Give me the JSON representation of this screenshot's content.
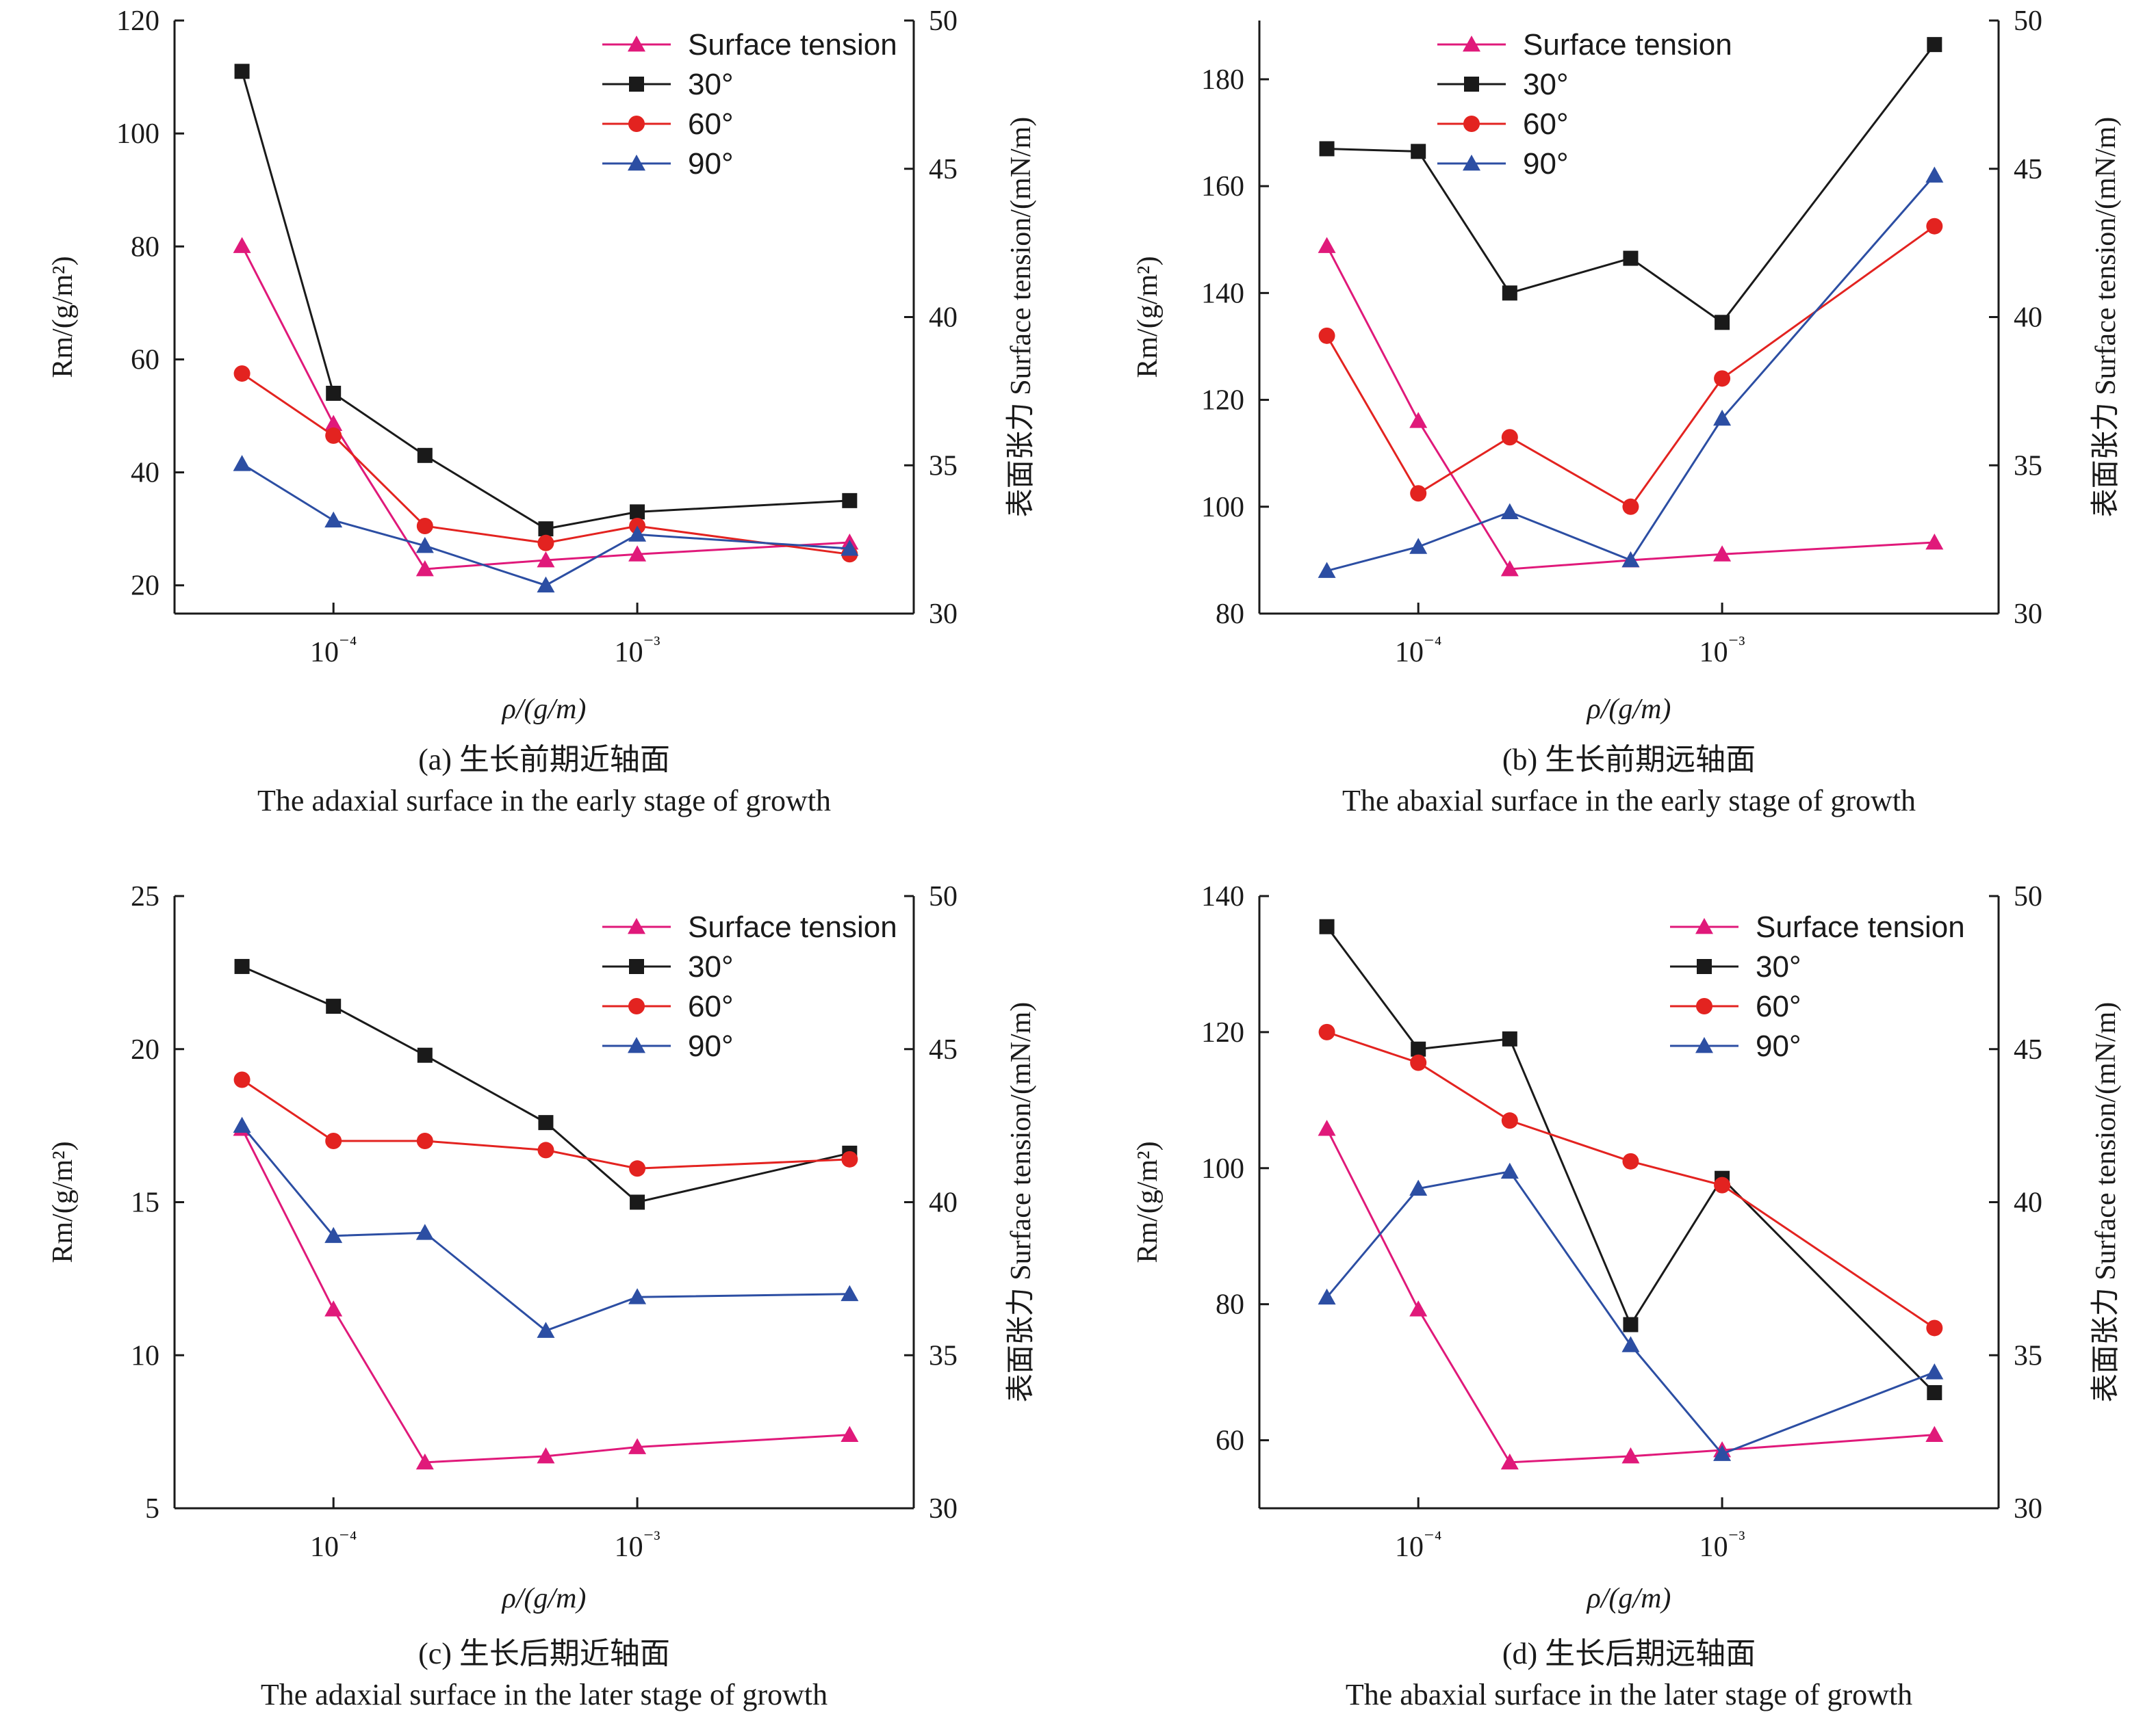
{
  "colors": {
    "surface_tension": "#e0197a",
    "deg30": "#1a1a1a",
    "deg60": "#e32320",
    "deg90": "#2c4ea3"
  },
  "chart_data": [
    {
      "panel": "a",
      "type": "line",
      "caption_zh": "(a) 生长前期近轴面",
      "caption_en": "The adaxial surface in the early stage of growth",
      "xlabel": "ρ/(g/m)",
      "ylabel_left": "Rm/(g/m²)",
      "ylabel_right": "表面张力 Surface tension/(mN/m)",
      "x_scale": "log",
      "x_ticks": [
        "10⁻⁴",
        "10⁻³"
      ],
      "x": [
        5e-05,
        0.0001,
        0.0002,
        0.0005,
        0.001,
        0.005
      ],
      "ylim_left": [
        15,
        120
      ],
      "yticks_left": [
        20,
        40,
        60,
        80,
        100,
        120
      ],
      "ylim_right": [
        30,
        50
      ],
      "yticks_right": [
        30,
        35,
        40,
        45,
        50
      ],
      "legend": "top-right",
      "series": [
        {
          "name": "Surface tension",
          "axis": "right",
          "marker": "triangle",
          "color": "#e0197a",
          "values": [
            42.4,
            36.4,
            31.5,
            31.8,
            32.0,
            32.4
          ]
        },
        {
          "name": "30°",
          "axis": "left",
          "marker": "square",
          "color": "#1a1a1a",
          "values": [
            111,
            54,
            43,
            30,
            33,
            35
          ]
        },
        {
          "name": "60°",
          "axis": "left",
          "marker": "circle",
          "color": "#e32320",
          "values": [
            57.5,
            46.5,
            30.5,
            27.5,
            30.5,
            25.5
          ]
        },
        {
          "name": "90°",
          "axis": "left",
          "marker": "triangle",
          "color": "#2c4ea3",
          "values": [
            41.5,
            31.5,
            27,
            20,
            29,
            26.5
          ]
        }
      ]
    },
    {
      "panel": "b",
      "type": "line",
      "caption_zh": "(b) 生长前期远轴面",
      "caption_en": "The abaxial surface in the early stage of growth",
      "xlabel": "ρ/(g/m)",
      "ylabel_left": "Rm/(g/m²)",
      "ylabel_right": "表面张力 Surface tension/(mN/m)",
      "x_scale": "log",
      "x_ticks": [
        "10⁻⁴",
        "10⁻³"
      ],
      "x": [
        5e-05,
        0.0001,
        0.0002,
        0.0005,
        0.001,
        0.005
      ],
      "ylim_left": [
        80,
        191
      ],
      "yticks_left": [
        80,
        100,
        120,
        140,
        160,
        180
      ],
      "ylim_right": [
        30,
        50
      ],
      "yticks_right": [
        30,
        35,
        40,
        45,
        50
      ],
      "legend": "top-left",
      "series": [
        {
          "name": "Surface tension",
          "axis": "right",
          "marker": "triangle",
          "color": "#e0197a",
          "values": [
            42.4,
            36.5,
            31.5,
            31.8,
            32.0,
            32.4
          ]
        },
        {
          "name": "30°",
          "axis": "left",
          "marker": "square",
          "color": "#1a1a1a",
          "values": [
            167,
            166.5,
            140,
            146.5,
            134.5,
            186.5
          ]
        },
        {
          "name": "60°",
          "axis": "left",
          "marker": "circle",
          "color": "#e32320",
          "values": [
            132,
            102.5,
            113,
            100,
            124,
            152.5
          ]
        },
        {
          "name": "90°",
          "axis": "left",
          "marker": "triangle",
          "color": "#2c4ea3",
          "values": [
            88,
            92.5,
            99,
            90,
            116.5,
            162
          ]
        }
      ]
    },
    {
      "panel": "c",
      "type": "line",
      "caption_zh": "(c) 生长后期近轴面",
      "caption_en": "The adaxial surface in the later stage of growth",
      "xlabel": "ρ/(g/m)",
      "ylabel_left": "Rm/(g/m²)",
      "ylabel_right": "表面张力 Surface tension/(mN/m)",
      "x_scale": "log",
      "x_ticks": [
        "10⁻⁴",
        "10⁻³"
      ],
      "x": [
        5e-05,
        0.0001,
        0.0002,
        0.0005,
        0.001,
        0.005
      ],
      "ylim_left": [
        5,
        25
      ],
      "yticks_left": [
        5,
        10,
        15,
        20,
        25
      ],
      "ylim_right": [
        30,
        50
      ],
      "yticks_right": [
        30,
        35,
        40,
        45,
        50
      ],
      "legend": "top-right",
      "series": [
        {
          "name": "Surface tension",
          "axis": "right",
          "marker": "triangle",
          "color": "#e0197a",
          "values": [
            42.4,
            36.5,
            31.5,
            31.7,
            32.0,
            32.4
          ]
        },
        {
          "name": "30°",
          "axis": "left",
          "marker": "square",
          "color": "#1a1a1a",
          "values": [
            22.7,
            21.4,
            19.8,
            17.6,
            15.0,
            16.6
          ]
        },
        {
          "name": "60°",
          "axis": "left",
          "marker": "circle",
          "color": "#e32320",
          "values": [
            19.0,
            17.0,
            17.0,
            16.7,
            16.1,
            16.4
          ]
        },
        {
          "name": "90°",
          "axis": "left",
          "marker": "triangle",
          "color": "#2c4ea3",
          "values": [
            17.5,
            13.9,
            14.0,
            10.8,
            11.9,
            12.0
          ]
        }
      ]
    },
    {
      "panel": "d",
      "type": "line",
      "caption_zh": "(d) 生长后期远轴面",
      "caption_en": "The abaxial surface in the later stage of growth",
      "xlabel": "ρ/(g/m)",
      "ylabel_left": "Rm/(g/m²)",
      "ylabel_right": "表面张力 Surface tension/(mN/m)",
      "x_scale": "log",
      "x_ticks": [
        "10⁻⁴",
        "10⁻³"
      ],
      "x": [
        5e-05,
        0.0001,
        0.0002,
        0.0005,
        0.001,
        0.005
      ],
      "ylim_left": [
        50,
        140
      ],
      "yticks_left": [
        60,
        80,
        100,
        120,
        140
      ],
      "ylim_right": [
        30,
        50
      ],
      "yticks_right": [
        30,
        35,
        40,
        45,
        50
      ],
      "legend": "top-right",
      "series": [
        {
          "name": "Surface tension",
          "axis": "right",
          "marker": "triangle",
          "color": "#e0197a",
          "values": [
            42.4,
            36.5,
            31.5,
            31.7,
            31.9,
            32.4
          ]
        },
        {
          "name": "30°",
          "axis": "left",
          "marker": "square",
          "color": "#1a1a1a",
          "values": [
            135.5,
            117.5,
            119,
            77,
            98.5,
            67
          ]
        },
        {
          "name": "60°",
          "axis": "left",
          "marker": "circle",
          "color": "#e32320",
          "values": [
            120,
            115.5,
            107,
            101,
            97.5,
            76.5
          ]
        },
        {
          "name": "90°",
          "axis": "left",
          "marker": "triangle",
          "color": "#2c4ea3",
          "values": [
            81,
            97,
            99.5,
            74,
            58,
            70
          ]
        }
      ]
    }
  ]
}
